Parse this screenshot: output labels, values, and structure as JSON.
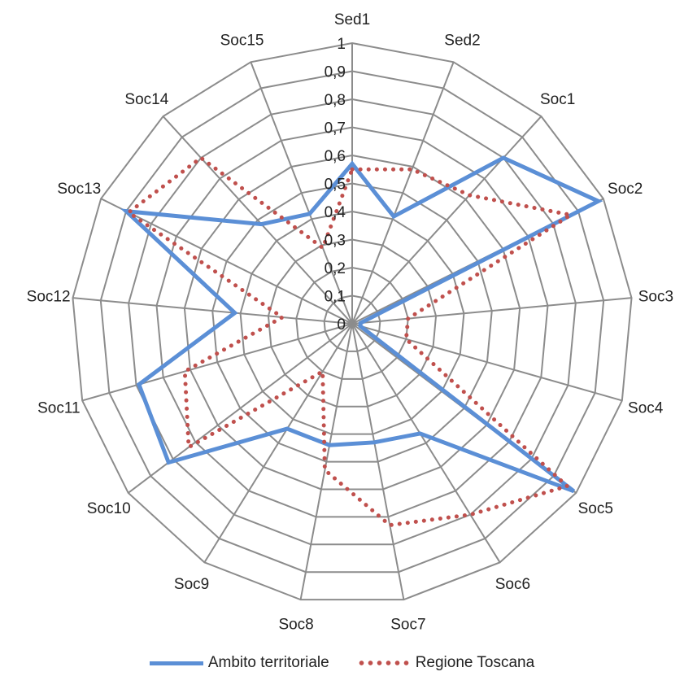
{
  "chart_data": {
    "type": "radar",
    "categories": [
      "Sed1",
      "Sed2",
      "Soc1",
      "Soc2",
      "Soc3",
      "Soc4",
      "Soc5",
      "Soc6",
      "Soc7",
      "Soc8",
      "Soc9",
      "Soc10",
      "Soc11",
      "Soc12",
      "Soc13",
      "Soc14",
      "Soc15"
    ],
    "ticks": [
      "0",
      "0,1",
      "0,2",
      "0,3",
      "0,4",
      "0,5",
      "0,6",
      "0,7",
      "0,8",
      "0,9",
      "1"
    ],
    "rlim": [
      0,
      1
    ],
    "grid": true,
    "legend_position": "bottom",
    "series": [
      {
        "name": "Ambito territoriale",
        "color": "#5B8FD6",
        "style": "solid",
        "values": [
          0.57,
          0.41,
          0.8,
          0.98,
          0.03,
          0.03,
          0.99,
          0.46,
          0.43,
          0.44,
          0.44,
          0.82,
          0.79,
          0.42,
          0.9,
          0.48,
          0.42
        ]
      },
      {
        "name": "Regione Toscana",
        "color": "#C0504D",
        "style": "dotted",
        "values": [
          0.55,
          0.59,
          0.62,
          0.87,
          0.2,
          0.2,
          0.96,
          0.8,
          0.73,
          0.53,
          0.2,
          0.73,
          0.62,
          0.25,
          0.89,
          0.8,
          0.29
        ]
      }
    ]
  }
}
